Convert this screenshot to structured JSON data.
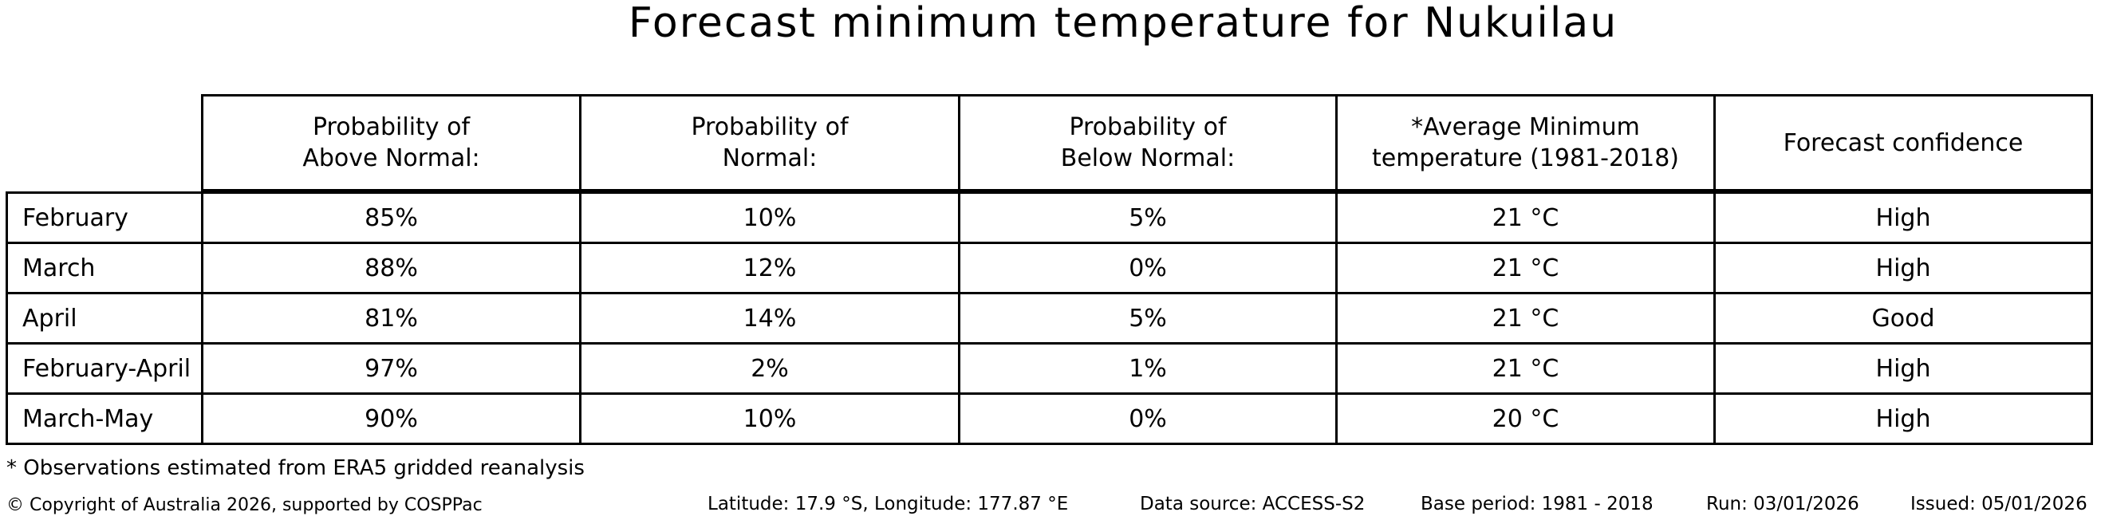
{
  "title": "Forecast minimum temperature for Nukuilau",
  "table": {
    "headers": [
      "Probability of\nAbove Normal:",
      "Probability of\nNormal:",
      "Probability of\nBelow Normal:",
      "*Average Minimum\ntemperature (1981-2018)",
      "Forecast confidence"
    ],
    "rows": [
      {
        "label": "February",
        "above": "85%",
        "normal": "10%",
        "below": "5%",
        "temp": "21 °C",
        "confidence": "High"
      },
      {
        "label": "March",
        "above": "88%",
        "normal": "12%",
        "below": "0%",
        "temp": "21 °C",
        "confidence": "High"
      },
      {
        "label": "April",
        "above": "81%",
        "normal": "14%",
        "below": "5%",
        "temp": "21 °C",
        "confidence": "Good"
      },
      {
        "label": "February-April",
        "above": "97%",
        "normal": "2%",
        "below": "1%",
        "temp": "21 °C",
        "confidence": "High"
      },
      {
        "label": "March-May",
        "above": "90%",
        "normal": "10%",
        "below": "0%",
        "temp": "20 °C",
        "confidence": "High"
      }
    ]
  },
  "footnote": "* Observations estimated from ERA5 gridded reanalysis",
  "footer": {
    "copyright": "© Copyright of Australia 2026, supported by COSPPac",
    "location": "Latitude: 17.9 °S, Longitude: 177.87 °E",
    "data_source": "Data source: ACCESS-S2",
    "base_period": "Base period: 1981 - 2018",
    "run": "Run: 03/01/2026",
    "issued": "Issued: 05/01/2026"
  },
  "colors": {
    "border": "#000000",
    "text": "#000000",
    "background": "#ffffff"
  },
  "chart_data": {
    "type": "table",
    "title": "Forecast minimum temperature for Nukuilau",
    "categories": [
      "February",
      "March",
      "April",
      "February-April",
      "March-May"
    ],
    "series": [
      {
        "name": "Probability of Above Normal (%)",
        "values": [
          85,
          88,
          81,
          97,
          90
        ]
      },
      {
        "name": "Probability of Normal (%)",
        "values": [
          10,
          12,
          14,
          2,
          10
        ]
      },
      {
        "name": "Probability of Below Normal (%)",
        "values": [
          5,
          0,
          5,
          1,
          0
        ]
      },
      {
        "name": "Average Minimum temperature 1981-2018 (°C)",
        "values": [
          21,
          21,
          21,
          21,
          20
        ]
      },
      {
        "name": "Forecast confidence",
        "values": [
          "High",
          "High",
          "Good",
          "High",
          "High"
        ]
      }
    ],
    "layout": {
      "grid": "all-cell-borders",
      "header_row": true,
      "row_label_column": true
    }
  }
}
